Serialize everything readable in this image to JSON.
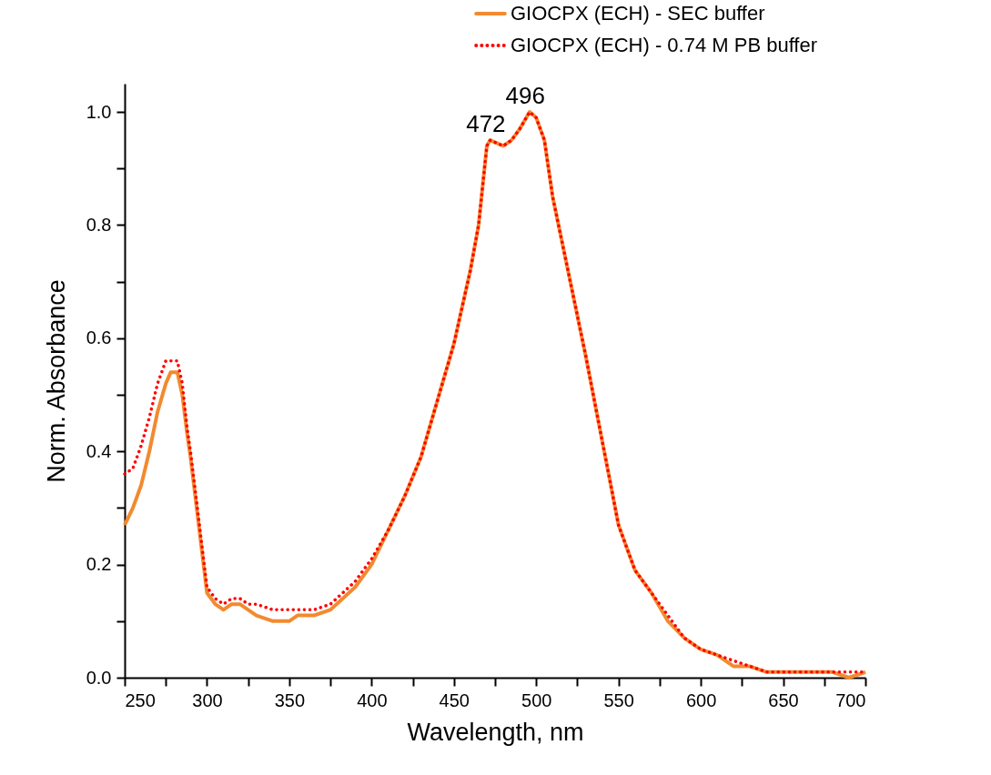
{
  "chart_data": {
    "type": "line",
    "xlabel": "Wavelength, nm",
    "ylabel": "Norm. Absorbance",
    "x": [
      250,
      255,
      260,
      265,
      270,
      275,
      278,
      282,
      285,
      288,
      290,
      295,
      300,
      305,
      310,
      315,
      320,
      325,
      330,
      340,
      350,
      355,
      365,
      375,
      390,
      400,
      410,
      420,
      430,
      440,
      450,
      460,
      465,
      470,
      472,
      480,
      485,
      490,
      496,
      500,
      505,
      510,
      515,
      520,
      530,
      540,
      550,
      560,
      570,
      580,
      590,
      600,
      610,
      620,
      630,
      640,
      650,
      660,
      670,
      680,
      690,
      700
    ],
    "series": [
      {
        "name": "GIOCPX (ECH) - SEC buffer",
        "color": "#f28a30",
        "line_style": "solid",
        "values": [
          0.27,
          0.3,
          0.34,
          0.4,
          0.47,
          0.52,
          0.54,
          0.54,
          0.5,
          0.43,
          0.39,
          0.27,
          0.15,
          0.13,
          0.12,
          0.13,
          0.13,
          0.12,
          0.11,
          0.1,
          0.1,
          0.11,
          0.11,
          0.12,
          0.16,
          0.2,
          0.26,
          0.32,
          0.39,
          0.49,
          0.59,
          0.72,
          0.8,
          0.94,
          0.95,
          0.94,
          0.95,
          0.97,
          1.0,
          0.99,
          0.95,
          0.85,
          0.78,
          0.71,
          0.57,
          0.42,
          0.27,
          0.19,
          0.15,
          0.1,
          0.07,
          0.05,
          0.04,
          0.02,
          0.02,
          0.01,
          0.01,
          0.01,
          0.01,
          0.01,
          0.0,
          0.01
        ]
      },
      {
        "name": "GIOCPX (ECH) - 0.74 M PB buffer",
        "color": "#ff0000",
        "line_style": "dotted",
        "values": [
          0.36,
          0.37,
          0.41,
          0.46,
          0.52,
          0.56,
          0.56,
          0.56,
          0.52,
          0.44,
          0.4,
          0.28,
          0.16,
          0.14,
          0.13,
          0.14,
          0.14,
          0.13,
          0.13,
          0.12,
          0.12,
          0.12,
          0.12,
          0.13,
          0.17,
          0.21,
          0.26,
          0.32,
          0.39,
          0.49,
          0.59,
          0.72,
          0.8,
          0.94,
          0.95,
          0.94,
          0.95,
          0.97,
          1.0,
          0.99,
          0.95,
          0.85,
          0.78,
          0.71,
          0.57,
          0.42,
          0.27,
          0.19,
          0.15,
          0.11,
          0.07,
          0.05,
          0.04,
          0.03,
          0.02,
          0.01,
          0.01,
          0.01,
          0.01,
          0.01,
          0.01,
          0.01
        ]
      }
    ],
    "annotations": [
      {
        "text": "472",
        "x": 472,
        "y": 0.95
      },
      {
        "text": "496",
        "x": 496,
        "y": 1.0
      }
    ],
    "xlim": [
      250,
      700
    ],
    "xticks": [
      250,
      {
        "value": 275,
        "label": null
      },
      300,
      {
        "value": 325,
        "label": null
      },
      350,
      {
        "value": 375,
        "label": null
      },
      400,
      {
        "value": 425,
        "label": null
      },
      450,
      {
        "value": 475,
        "label": null
      },
      500,
      {
        "value": 525,
        "label": null
      },
      550,
      {
        "value": 575,
        "label": null
      },
      600,
      {
        "value": 625,
        "label": null
      },
      650,
      {
        "value": 675,
        "label": null
      },
      700
    ],
    "ylim": [
      0,
      1.05
    ],
    "yticks": [
      {
        "value": 0,
        "label": "0.0"
      },
      {
        "value": 0.1,
        "label": null
      },
      {
        "value": 0.2,
        "label": "0.2"
      },
      {
        "value": 0.3,
        "label": null
      },
      {
        "value": 0.4,
        "label": "0.4"
      },
      {
        "value": 0.5,
        "label": null
      },
      {
        "value": 0.6,
        "label": "0.6"
      },
      {
        "value": 0.7,
        "label": null
      },
      {
        "value": 0.8,
        "label": "0.8"
      },
      {
        "value": 0.9,
        "label": null
      },
      {
        "value": 1.0,
        "label": "1.0"
      }
    ],
    "grid": false,
    "legend": "top right"
  }
}
